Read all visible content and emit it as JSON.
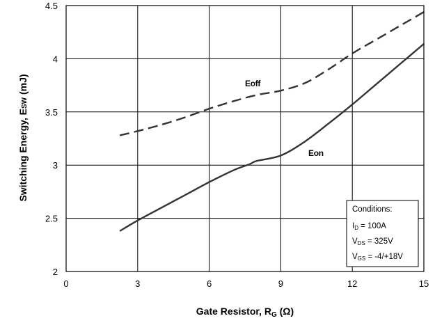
{
  "chart_data": {
    "type": "line",
    "xlabel_main": "Gate Resistor, R",
    "xlabel_sub": "G",
    "xlabel_unit": " (Ω)",
    "ylabel_main": "Switching Energy, E",
    "ylabel_sub": "SW",
    "ylabel_unit": " (mJ)",
    "xlim": [
      0,
      15
    ],
    "ylim": [
      2,
      4.5
    ],
    "x_ticks": [
      "0",
      "3",
      "6",
      "9",
      "12",
      "15"
    ],
    "y_ticks": [
      "2",
      "2.5",
      "3",
      "3.5",
      "4",
      "4.5"
    ],
    "grid": true,
    "series": [
      {
        "name": "Eoff",
        "style": "dashed",
        "color": "#333333",
        "x": [
          2.25,
          3,
          4,
          5,
          6,
          7,
          8,
          9,
          10,
          11,
          12,
          13,
          14,
          15
        ],
        "y": [
          3.28,
          3.32,
          3.38,
          3.45,
          3.53,
          3.6,
          3.66,
          3.7,
          3.77,
          3.9,
          4.05,
          4.18,
          4.31,
          4.44
        ]
      },
      {
        "name": "Eon",
        "style": "solid",
        "color": "#333333",
        "x": [
          2.25,
          3,
          4,
          5,
          6,
          7,
          7.7,
          8,
          9,
          10,
          11,
          12,
          13,
          14,
          15
        ],
        "y": [
          2.38,
          2.48,
          2.6,
          2.72,
          2.84,
          2.95,
          3.01,
          3.04,
          3.09,
          3.22,
          3.39,
          3.57,
          3.76,
          3.95,
          4.14
        ]
      }
    ],
    "annotations": {
      "title": "Conditions:",
      "lines": [
        {
          "main": "I",
          "sub": "D",
          "rest": " = 100A"
        },
        {
          "main": "V",
          "sub": "DS",
          "rest": " = 325V"
        },
        {
          "main": "V",
          "sub": "GS",
          "rest": " = -4/+18V"
        }
      ]
    }
  }
}
